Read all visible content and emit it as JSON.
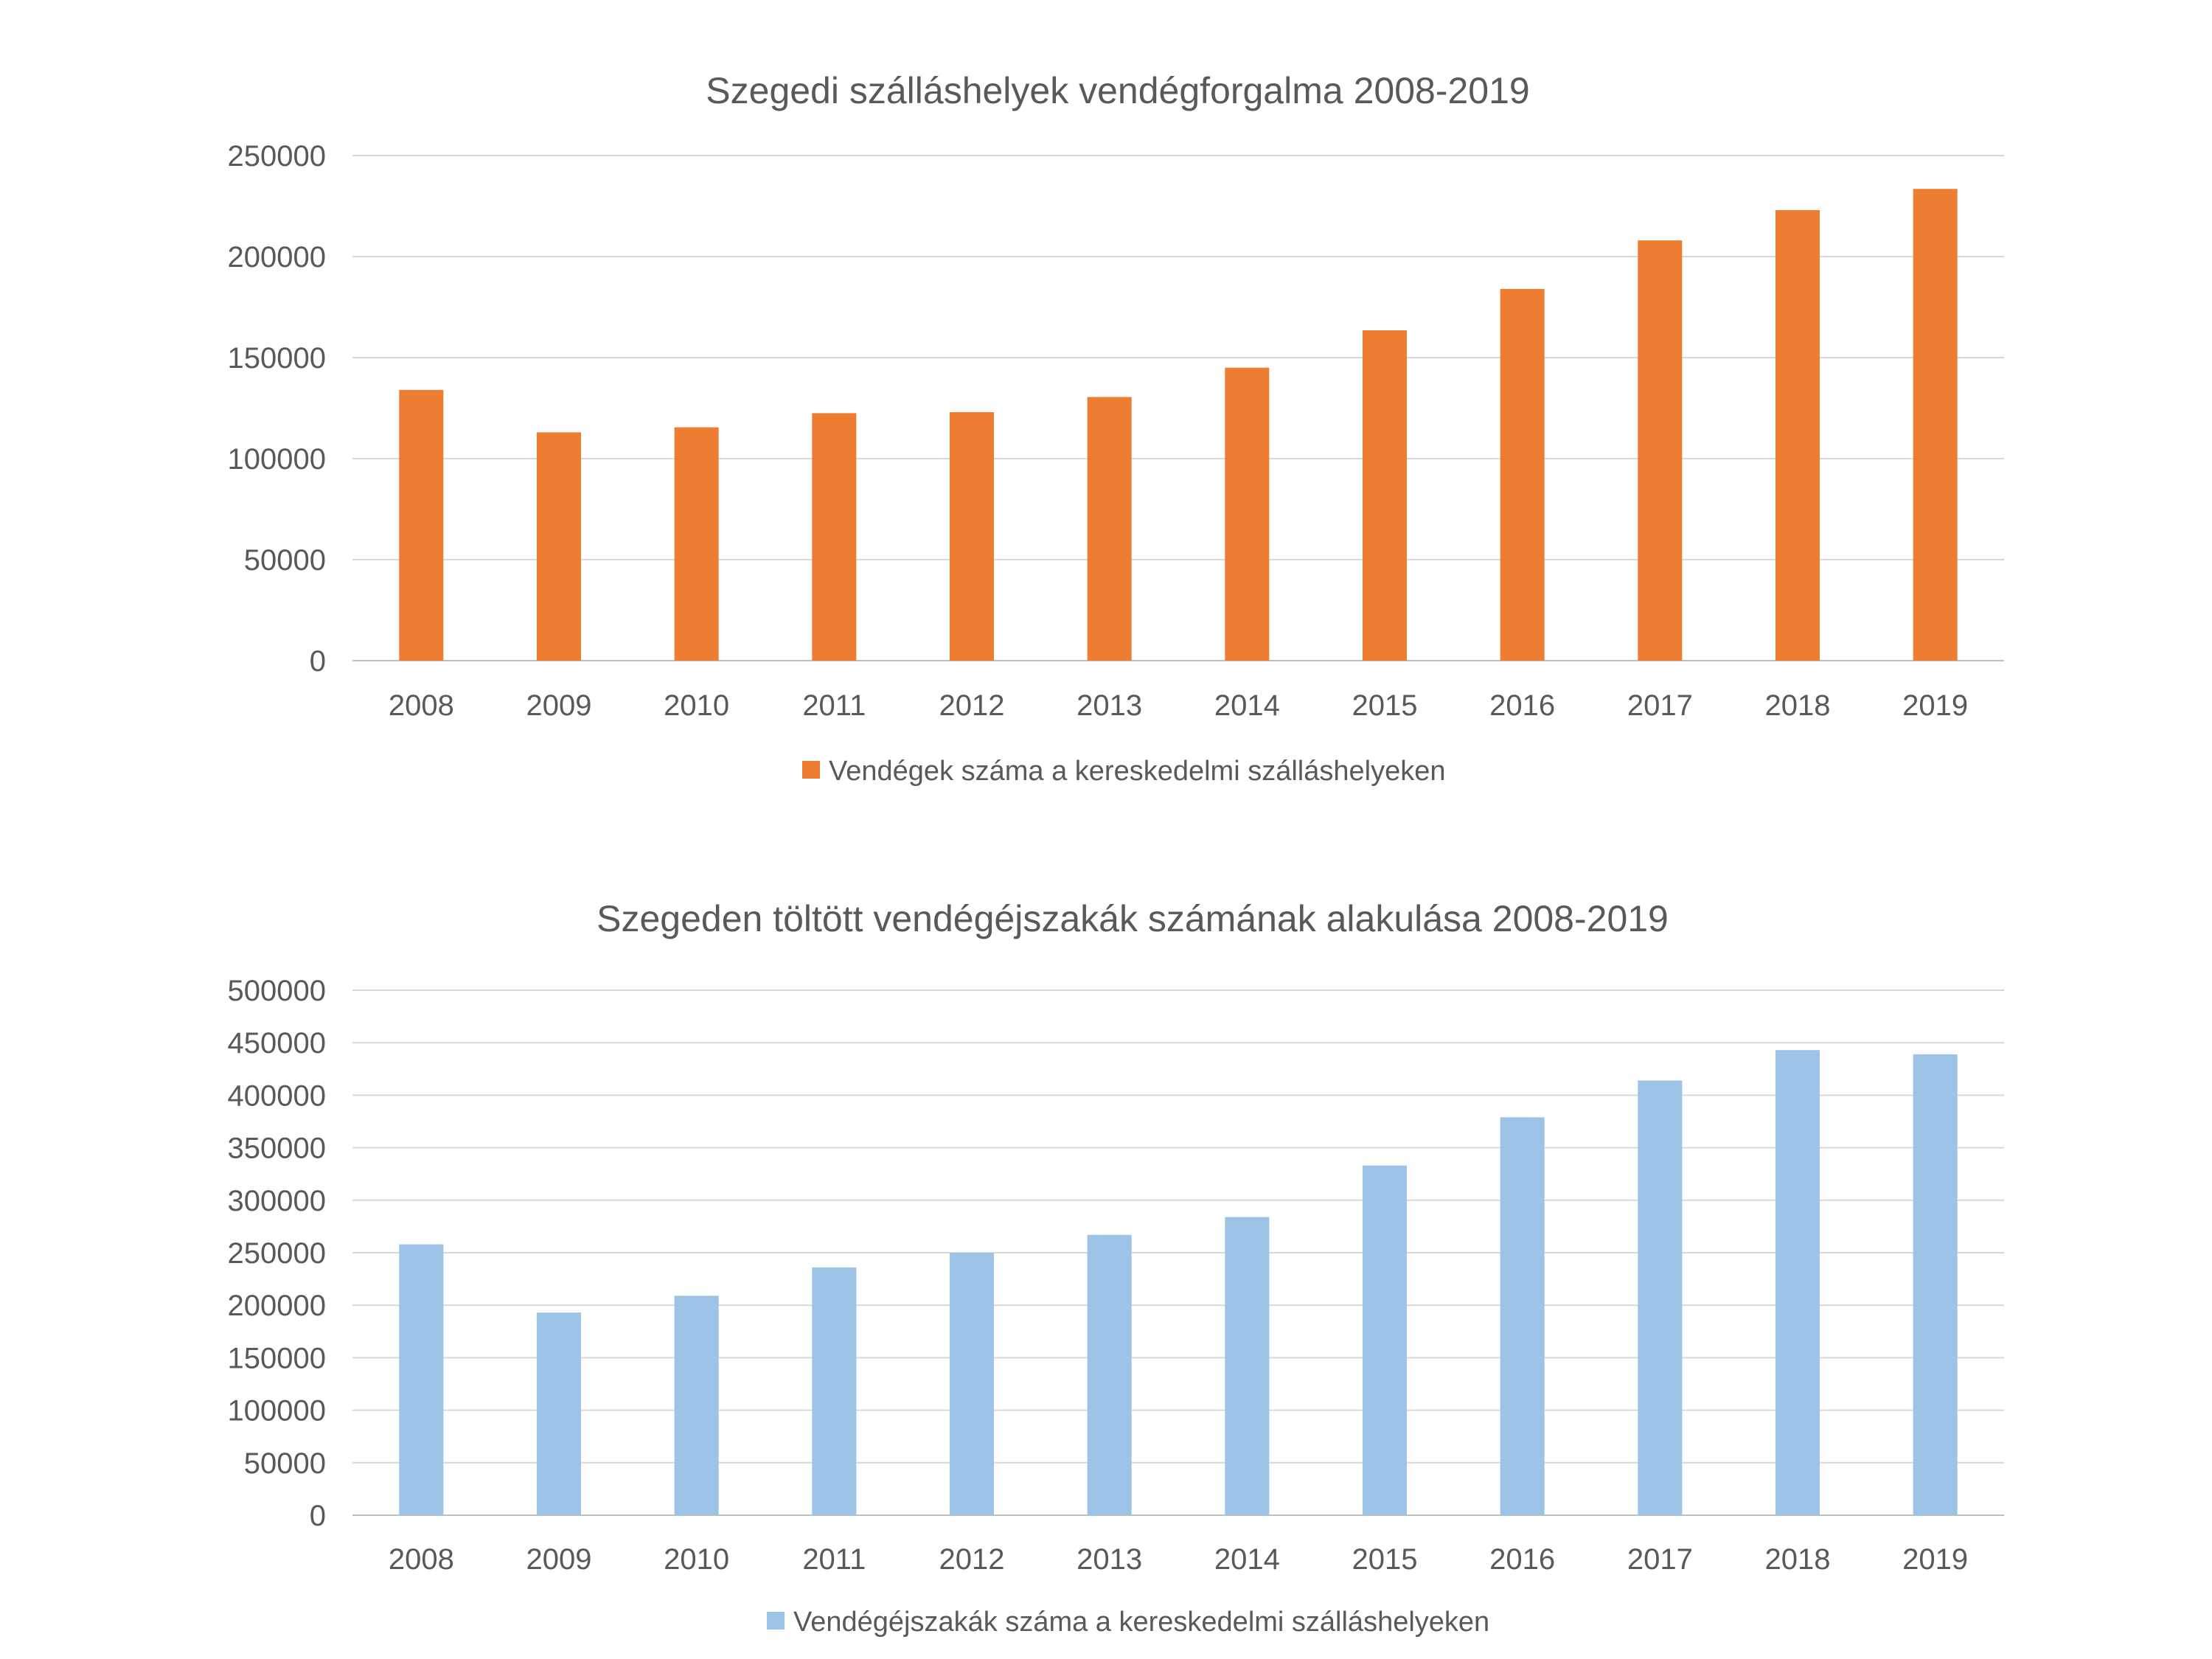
{
  "chart_data": [
    {
      "type": "bar",
      "title": "Szegedi szálláshelyek vendégforgalma 2008-2019",
      "xlabel": "",
      "ylabel": "",
      "categories": [
        "2008",
        "2009",
        "2010",
        "2011",
        "2012",
        "2013",
        "2014",
        "2015",
        "2016",
        "2017",
        "2018",
        "2019"
      ],
      "series": [
        {
          "name": "Vendégek száma a kereskedelmi szálláshelyeken",
          "values": [
            134000,
            113000,
            115500,
            122500,
            123000,
            130500,
            145000,
            163500,
            184000,
            208000,
            223000,
            233500
          ],
          "color": "#ed7d31"
        }
      ],
      "yticks": [
        "0",
        "50000",
        "100000",
        "150000",
        "200000",
        "250000"
      ],
      "ylim": [
        0,
        250000
      ],
      "grid": true,
      "legend_position": "bottom"
    },
    {
      "type": "bar",
      "title": "Szegeden töltött vendégéjszakák számának alakulása 2008-2019",
      "xlabel": "",
      "ylabel": "",
      "categories": [
        "2008",
        "2009",
        "2010",
        "2011",
        "2012",
        "2013",
        "2014",
        "2015",
        "2016",
        "2017",
        "2018",
        "2019"
      ],
      "series": [
        {
          "name": "Vendégéjszakák száma a kereskedelmi szálláshelyeken",
          "values": [
            258000,
            193000,
            209000,
            236000,
            250000,
            267000,
            284000,
            333000,
            379000,
            414000,
            443000,
            439000
          ],
          "color": "#9dc3e6"
        }
      ],
      "yticks": [
        "0",
        "50000",
        "100000",
        "150000",
        "200000",
        "250000",
        "300000",
        "350000",
        "400000",
        "450000",
        "500000"
      ],
      "ylim": [
        0,
        500000
      ],
      "grid": true,
      "legend_position": "bottom"
    }
  ]
}
